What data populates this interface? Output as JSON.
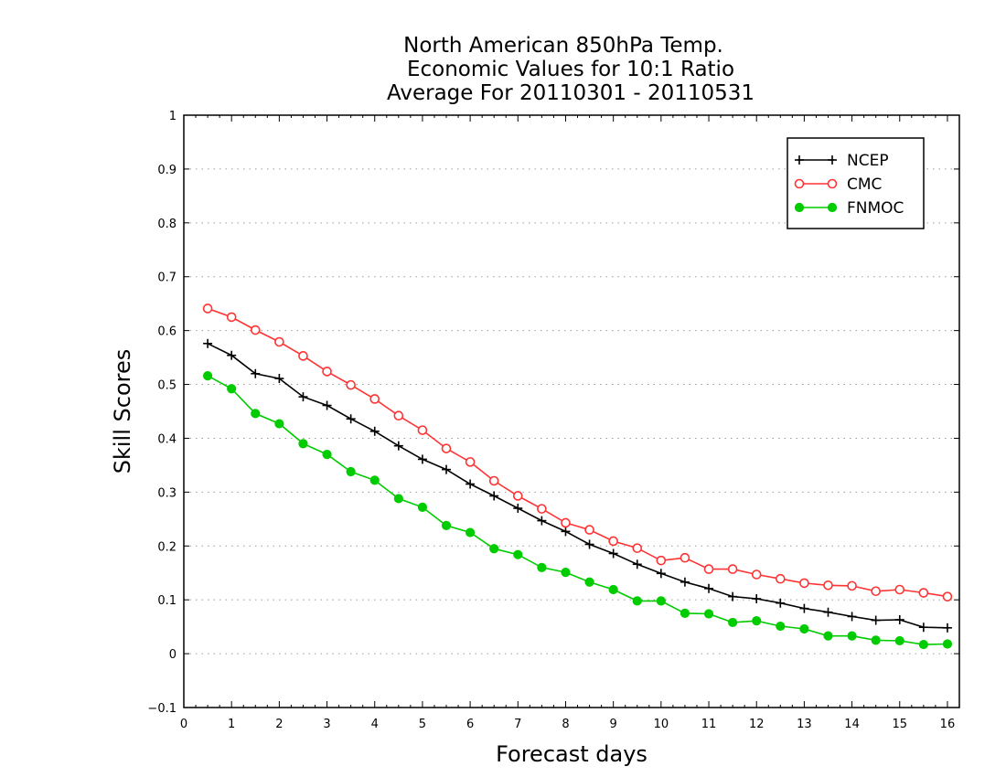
{
  "chart_data": {
    "type": "line",
    "title_lines": [
      "North American 850hPa Temp.",
      "Economic Values for 10:1 Ratio",
      "Average For 20110301 - 20110531"
    ],
    "xlabel": "Forecast days",
    "ylabel": "Skill Scores",
    "xlim": [
      0,
      16.25
    ],
    "ylim": [
      -0.1,
      1
    ],
    "x_ticks": [
      "0",
      "1",
      "2",
      "3",
      "4",
      "5",
      "6",
      "7",
      "8",
      "9",
      "10",
      "11",
      "12",
      "13",
      "14",
      "15",
      "16"
    ],
    "y_ticks": [
      "1",
      "0.9",
      "0.8",
      "0.7",
      "0.6",
      "0.5",
      "0.4",
      "0.3",
      "0.2",
      "0.1",
      "0",
      "−0.1"
    ],
    "grid": "dotted horizontal",
    "legend_position": "top-right",
    "x": [
      0.5,
      1.0,
      1.5,
      2.0,
      2.5,
      3.0,
      3.5,
      4.0,
      4.5,
      5.0,
      5.5,
      6.0,
      6.5,
      7.0,
      7.5,
      8.0,
      8.5,
      9.0,
      9.5,
      10.0,
      10.5,
      11.0,
      11.5,
      12.0,
      12.5,
      13.0,
      13.5,
      14.0,
      14.5,
      15.0,
      15.5,
      16.0
    ],
    "series": [
      {
        "name": "NCEP",
        "color": "#000000",
        "marker": "plus",
        "values": [
          0.576,
          0.554,
          0.52,
          0.511,
          0.477,
          0.461,
          0.436,
          0.413,
          0.386,
          0.361,
          0.342,
          0.315,
          0.293,
          0.27,
          0.247,
          0.227,
          0.203,
          0.186,
          0.166,
          0.149,
          0.133,
          0.121,
          0.106,
          0.102,
          0.094,
          0.084,
          0.077,
          0.069,
          0.062,
          0.063,
          0.049,
          0.048
        ]
      },
      {
        "name": "CMC",
        "color": "#ff3333",
        "marker": "open-circle",
        "values": [
          0.641,
          0.625,
          0.601,
          0.579,
          0.553,
          0.524,
          0.499,
          0.473,
          0.442,
          0.415,
          0.381,
          0.356,
          0.321,
          0.293,
          0.269,
          0.243,
          0.23,
          0.209,
          0.196,
          0.173,
          0.178,
          0.157,
          0.157,
          0.147,
          0.139,
          0.131,
          0.127,
          0.126,
          0.116,
          0.119,
          0.113,
          0.106
        ]
      },
      {
        "name": "FNMOC",
        "color": "#00cc00",
        "marker": "filled-circle",
        "values": [
          0.516,
          0.492,
          0.446,
          0.427,
          0.39,
          0.37,
          0.338,
          0.322,
          0.288,
          0.272,
          0.238,
          0.225,
          0.195,
          0.184,
          0.16,
          0.151,
          0.133,
          0.119,
          0.098,
          0.098,
          0.075,
          0.074,
          0.058,
          0.061,
          0.051,
          0.046,
          0.033,
          0.033,
          0.025,
          0.024,
          0.017,
          0.018
        ]
      }
    ]
  }
}
